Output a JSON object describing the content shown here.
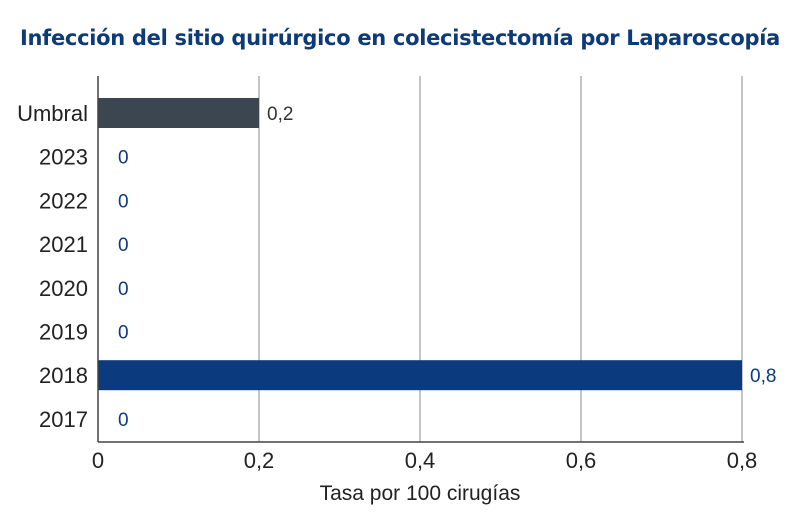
{
  "chart_data": {
    "type": "bar",
    "orientation": "horizontal",
    "title": "Infección del sitio quirúrgico en colecistectomía por Laparoscopía",
    "xlabel": "Tasa por 100 cirugías",
    "ylabel": "",
    "xlim": [
      0,
      0.8
    ],
    "x_ticks": [
      0,
      0.2,
      0.4,
      0.6,
      0.8
    ],
    "x_tick_labels": [
      "0",
      "0,2",
      "0,4",
      "0,6",
      "0,8"
    ],
    "grid": true,
    "categories": [
      "Umbral",
      "2023",
      "2022",
      "2021",
      "2020",
      "2019",
      "2018",
      "2017"
    ],
    "values": [
      0.2,
      0,
      0,
      0,
      0,
      0,
      0.8,
      0
    ],
    "data_labels": [
      "0,2",
      "0",
      "0",
      "0",
      "0",
      "0",
      "0,8",
      "0"
    ],
    "colors": {
      "umbral": "#3b4650",
      "years": "#0b3a7e",
      "umbral_label": "#333333",
      "year_label": "#0b3a7e",
      "gridline": "#8a8a8a",
      "axis": "#444444"
    }
  }
}
